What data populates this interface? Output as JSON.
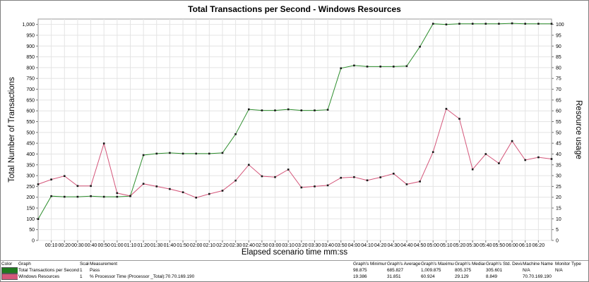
{
  "chart_data": {
    "type": "line",
    "title": "Total Transactions per Second - Windows Resources",
    "xlabel": "Elapsed scenario time mm:ss",
    "ylabel": "Total Number of Transactions",
    "ylabel_right": "Resource usage",
    "x_ticks": [
      "00:10",
      "00:20",
      "00:30",
      "00:40",
      "00:50",
      "01:00",
      "01:10",
      "01:20",
      "01:30",
      "01:40",
      "01:50",
      "02:00",
      "02:10",
      "02:20",
      "02:30",
      "02:40",
      "02:50",
      "03:00",
      "03:10",
      "03:20",
      "03:30",
      "03:40",
      "03:50",
      "04:00",
      "04:10",
      "04:20",
      "04:30",
      "04:40",
      "04:50",
      "05:00",
      "05:10",
      "05:20",
      "05:30",
      "05:40",
      "05:50",
      "06:00",
      "06:10",
      "06:20"
    ],
    "xlim": [
      0,
      390
    ],
    "ylim": [
      0,
      1025
    ],
    "y_ticks": [
      "0",
      "50",
      "100",
      "150",
      "200",
      "250",
      "300",
      "350",
      "400",
      "450",
      "500",
      "550",
      "600",
      "650",
      "700",
      "750",
      "800",
      "850",
      "900",
      "950",
      "1,000"
    ],
    "ylim_right": [
      0,
      102.5
    ],
    "y_ticks_right": [
      "0",
      "5",
      "10",
      "15",
      "20",
      "25",
      "30",
      "35",
      "40",
      "45",
      "50",
      "55",
      "60",
      "65",
      "70",
      "75",
      "80",
      "85",
      "90",
      "95",
      "100"
    ],
    "grid": true,
    "series": [
      {
        "name": "Total Transactions per Second",
        "color": "#2f8f2f",
        "axis": "left",
        "x": [
          0,
          10,
          20,
          30,
          40,
          50,
          60,
          70,
          80,
          90,
          100,
          110,
          120,
          130,
          140,
          150,
          160,
          170,
          180,
          190,
          200,
          210,
          220,
          230,
          240,
          250,
          260,
          270,
          280,
          290,
          300,
          310,
          320,
          330,
          340,
          350,
          360,
          370,
          380,
          390
        ],
        "values": [
          99,
          205,
          202,
          202,
          205,
          202,
          202,
          205,
          395,
          402,
          405,
          402,
          402,
          402,
          405,
          492,
          607,
          602,
          602,
          607,
          602,
          602,
          605,
          797,
          810,
          805,
          805,
          805,
          807,
          897,
          1003,
          1000,
          1003,
          1003,
          1003,
          1003,
          1005,
          1003,
          1003,
          1003
        ]
      },
      {
        "name": "Windows Resources",
        "color": "#d4567a",
        "axis": "right",
        "x": [
          0,
          10,
          20,
          30,
          40,
          50,
          60,
          70,
          80,
          90,
          100,
          110,
          120,
          130,
          140,
          150,
          160,
          170,
          180,
          190,
          200,
          210,
          220,
          230,
          240,
          250,
          260,
          270,
          280,
          290,
          300,
          310,
          320,
          330,
          340,
          350,
          360,
          370,
          380,
          390
        ],
        "values": [
          26.0,
          28.2,
          29.8,
          25.2,
          25.2,
          44.9,
          21.9,
          20.6,
          26.2,
          25.0,
          23.8,
          22.3,
          19.8,
          21.5,
          23.0,
          27.7,
          35.0,
          29.7,
          29.3,
          32.8,
          24.5,
          25.0,
          25.5,
          29.0,
          29.3,
          27.8,
          29.2,
          30.9,
          26.0,
          27.3,
          40.9,
          60.9,
          56.3,
          32.9,
          40.0,
          35.7,
          46.0,
          37.2,
          38.5,
          37.7
        ]
      }
    ]
  },
  "legend": {
    "headers": [
      "Color",
      "Graph",
      "Scale",
      "Measurement",
      "Graph's Minimum",
      "Graph's Average",
      "Graph's Maximum",
      "Graph's Median",
      "Graph's Std. Deviation",
      "Machine Name",
      "Monitor Type"
    ],
    "rows": [
      {
        "color": "#1f7a1f",
        "graph": "Total Transactions per Second",
        "scale": "1",
        "measurement": "Pass",
        "min": "98.875",
        "avg": "685.827",
        "max": "1,009.875",
        "median": "805.375",
        "std": "305.601",
        "machine": "N/A",
        "monitor": "N/A"
      },
      {
        "color": "#d4567a",
        "graph": "Windows Resources",
        "scale": "1",
        "measurement": "% Processor Time (Processor _Total):70.70.169.190",
        "min": "19.386",
        "avg": "31.851",
        "max": "60.924",
        "median": "29.129",
        "std": "8.849",
        "machine": "70.70.169.190",
        "monitor": ""
      }
    ]
  }
}
